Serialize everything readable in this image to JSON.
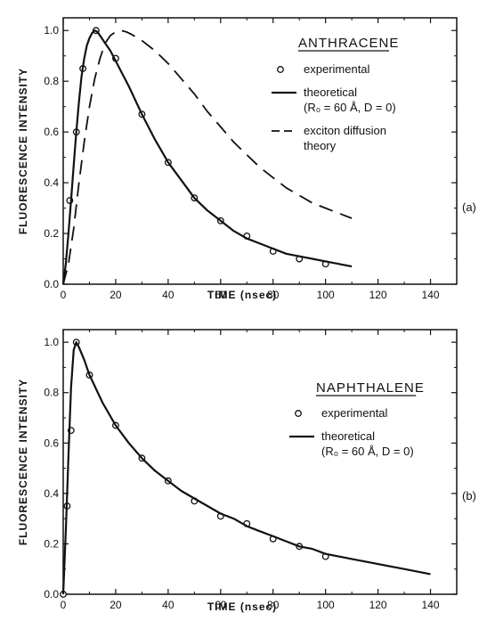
{
  "chart_data": [
    {
      "type": "line",
      "title": "ANTHRACENE",
      "panel_label": "(a)",
      "xlabel": "TIME (nsec)",
      "ylabel": "FLUORESCENCE INTENSITY",
      "xlim": [
        0,
        150
      ],
      "ylim": [
        0,
        1.05
      ],
      "xticks": [
        0,
        20,
        40,
        60,
        80,
        100,
        120,
        140
      ],
      "yticks": [
        0.0,
        0.2,
        0.4,
        0.6,
        0.8,
        1.0
      ],
      "legend": [
        {
          "marker": "circle",
          "lines": [
            "experimental"
          ]
        },
        {
          "marker": "solid",
          "lines": [
            "theoretical",
            "(R₀ = 60 Å, D = 0)"
          ]
        },
        {
          "marker": "dashed",
          "lines": [
            "exciton diffusion",
            "theory"
          ]
        }
      ],
      "series": [
        {
          "name": "experimental",
          "style": "points",
          "x": [
            2.5,
            5,
            7.5,
            12.5,
            20,
            30,
            40,
            50,
            60,
            70,
            80,
            90,
            100
          ],
          "y": [
            0.33,
            0.6,
            0.85,
            1.0,
            0.89,
            0.67,
            0.48,
            0.34,
            0.25,
            0.19,
            0.13,
            0.1,
            0.08
          ]
        },
        {
          "name": "theoretical",
          "style": "solid",
          "x": [
            0,
            1,
            2,
            3,
            4,
            5,
            6,
            7,
            8,
            9,
            10,
            11,
            12,
            13,
            14,
            16,
            18,
            20,
            25,
            30,
            35,
            40,
            45,
            50,
            55,
            60,
            65,
            70,
            75,
            80,
            85,
            90,
            95,
            100,
            105,
            110
          ],
          "y": [
            0,
            0.08,
            0.2,
            0.33,
            0.47,
            0.6,
            0.72,
            0.82,
            0.89,
            0.94,
            0.97,
            0.99,
            1.0,
            0.995,
            0.98,
            0.95,
            0.92,
            0.88,
            0.78,
            0.67,
            0.57,
            0.48,
            0.41,
            0.34,
            0.29,
            0.25,
            0.21,
            0.18,
            0.16,
            0.14,
            0.12,
            0.11,
            0.1,
            0.09,
            0.08,
            0.07
          ]
        },
        {
          "name": "exciton diffusion theory",
          "style": "dashed",
          "x": [
            0,
            2,
            4,
            6,
            8,
            10,
            12,
            14,
            16,
            18,
            20,
            22,
            24,
            26,
            30,
            35,
            40,
            45,
            50,
            55,
            60,
            65,
            70,
            75,
            80,
            85,
            90,
            95,
            100,
            105,
            110
          ],
          "y": [
            0,
            0.08,
            0.22,
            0.4,
            0.56,
            0.7,
            0.81,
            0.89,
            0.95,
            0.98,
            0.995,
            1.0,
            0.995,
            0.985,
            0.96,
            0.92,
            0.87,
            0.81,
            0.75,
            0.68,
            0.62,
            0.56,
            0.51,
            0.46,
            0.42,
            0.38,
            0.35,
            0.32,
            0.3,
            0.28,
            0.26
          ]
        }
      ]
    },
    {
      "type": "line",
      "title": "NAPHTHALENE",
      "panel_label": "(b)",
      "xlabel": "TIME (nsec)",
      "ylabel": "FLUORESCENCE INTENSITY",
      "xlim": [
        0,
        150
      ],
      "ylim": [
        0,
        1.05
      ],
      "xticks": [
        0,
        20,
        40,
        60,
        80,
        100,
        120,
        140
      ],
      "yticks": [
        0.0,
        0.2,
        0.4,
        0.6,
        0.8,
        1.0
      ],
      "legend": [
        {
          "marker": "circle",
          "lines": [
            "experimental"
          ]
        },
        {
          "marker": "solid",
          "lines": [
            "theoretical",
            "(R₀ = 60 Å, D = 0)"
          ]
        }
      ],
      "series": [
        {
          "name": "experimental",
          "style": "points",
          "x": [
            0,
            1.5,
            3,
            5,
            10,
            20,
            30,
            40,
            50,
            60,
            70,
            80,
            90,
            100
          ],
          "y": [
            0.0,
            0.35,
            0.65,
            1.0,
            0.87,
            0.67,
            0.54,
            0.45,
            0.37,
            0.31,
            0.28,
            0.22,
            0.19,
            0.15
          ]
        },
        {
          "name": "theoretical",
          "style": "solid",
          "x": [
            0,
            1,
            2,
            3,
            4,
            5,
            6,
            8,
            10,
            15,
            20,
            25,
            30,
            35,
            40,
            45,
            50,
            55,
            60,
            65,
            70,
            75,
            80,
            85,
            90,
            95,
            100,
            110,
            120,
            130,
            140
          ],
          "y": [
            0,
            0.25,
            0.55,
            0.82,
            0.97,
            1.0,
            0.98,
            0.93,
            0.87,
            0.76,
            0.67,
            0.6,
            0.54,
            0.49,
            0.45,
            0.41,
            0.38,
            0.35,
            0.32,
            0.3,
            0.27,
            0.25,
            0.23,
            0.21,
            0.19,
            0.18,
            0.16,
            0.14,
            0.12,
            0.1,
            0.08
          ]
        }
      ]
    }
  ]
}
